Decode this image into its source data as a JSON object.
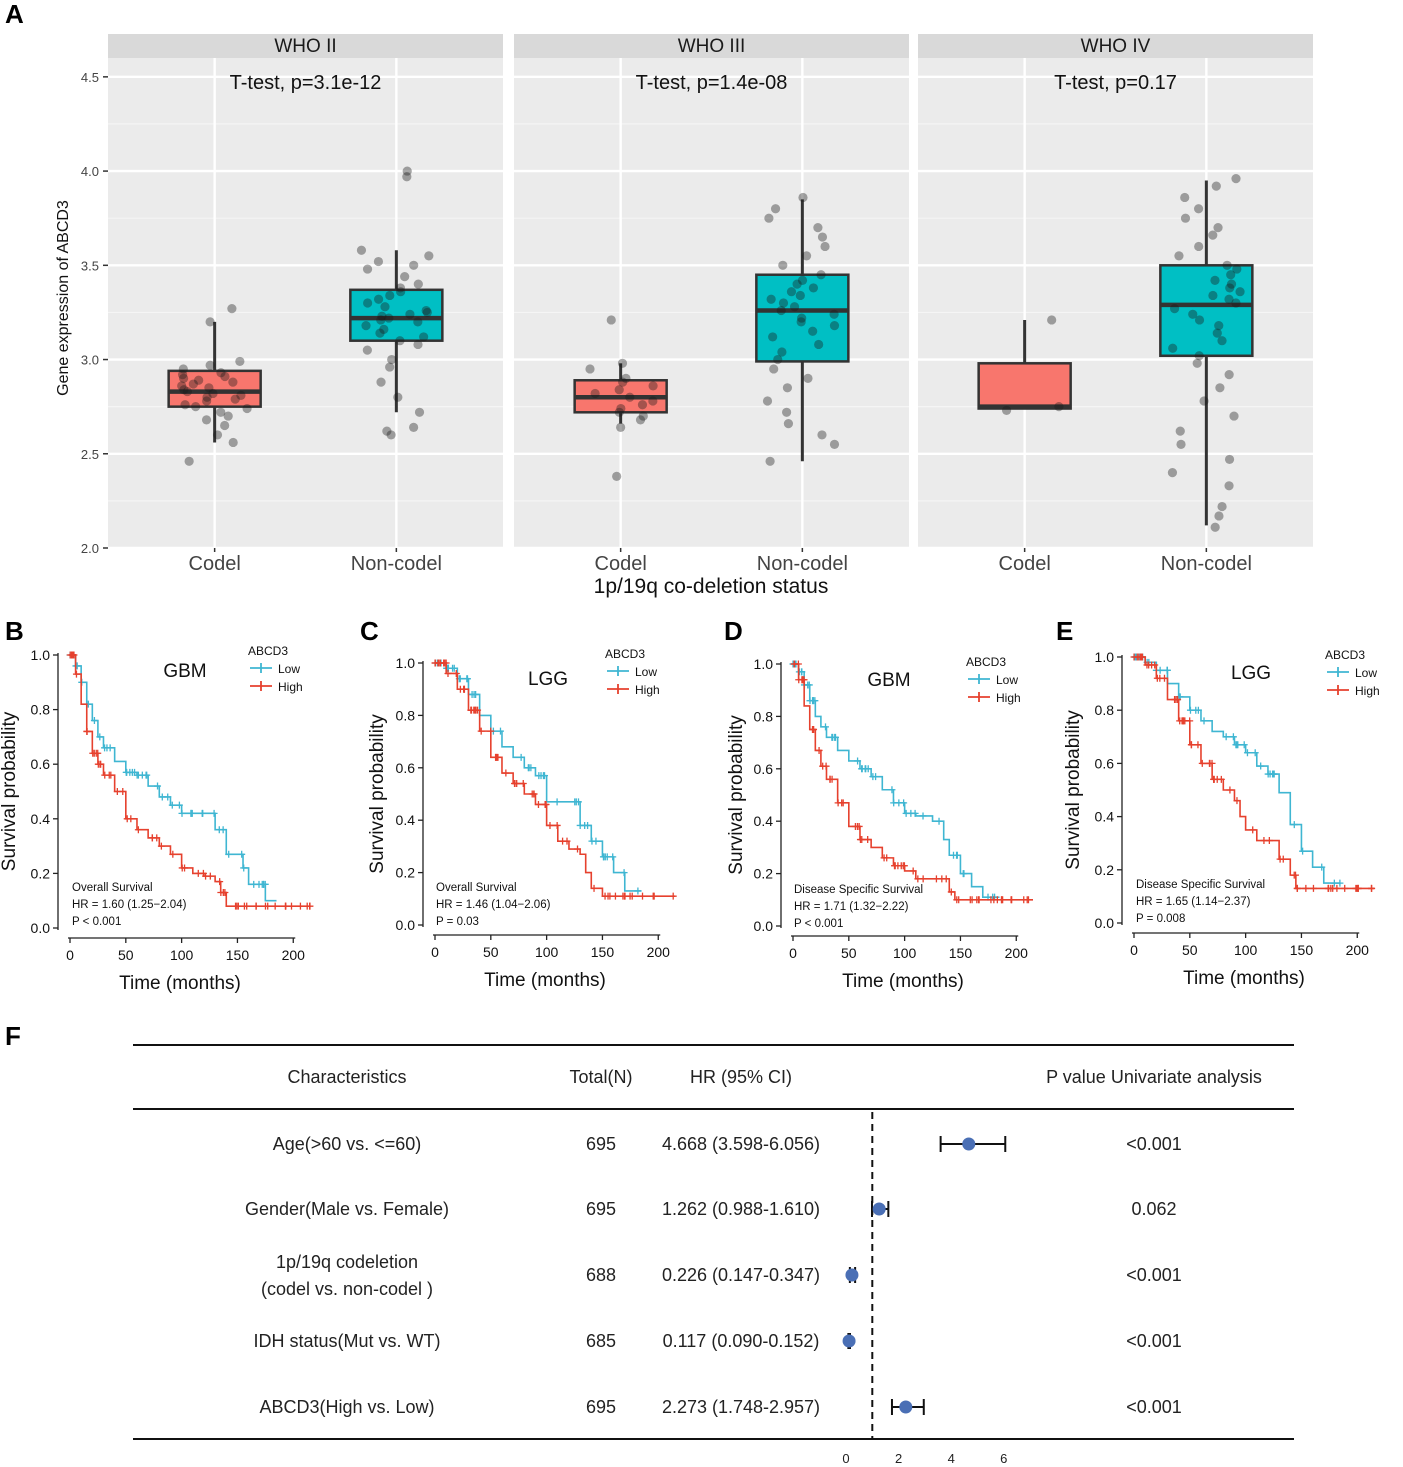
{
  "panel_labels": {
    "a": "A",
    "b": "B",
    "c": "C",
    "d": "D",
    "e": "E",
    "f": "F"
  },
  "chart_data": [
    {
      "type": "box",
      "panel": "A",
      "ylabel": "Gene expression of ABCD3",
      "xlabel": "1p/19q co-deletion status",
      "ylim": [
        2.0,
        4.6
      ],
      "yticks": [
        "2.0",
        "2.5",
        "3.0",
        "3.5",
        "4.0",
        "4.5"
      ],
      "categories": [
        "Codel",
        "Non-codel"
      ],
      "colors": {
        "Codel": "#F8766D",
        "Non-codel": "#00BFC4"
      },
      "facets": [
        {
          "name": "WHO II",
          "annotation": "T-test, p=3.1e-12",
          "boxes": [
            {
              "category": "Codel",
              "min": 2.56,
              "q1": 2.75,
              "median": 2.83,
              "q3": 2.94,
              "max": 3.2,
              "points": [
                2.46,
                2.56,
                2.6,
                2.65,
                2.68,
                2.7,
                2.72,
                2.74,
                2.75,
                2.76,
                2.78,
                2.79,
                2.8,
                2.81,
                2.82,
                2.83,
                2.84,
                2.85,
                2.86,
                2.87,
                2.88,
                2.89,
                2.9,
                2.91,
                2.92,
                2.93,
                2.95,
                2.97,
                2.99,
                3.2,
                3.27
              ]
            },
            {
              "category": "Non-codel",
              "min": 2.72,
              "q1": 3.1,
              "median": 3.22,
              "q3": 3.37,
              "max": 3.58,
              "points": [
                2.6,
                2.62,
                2.64,
                2.72,
                2.8,
                2.88,
                2.96,
                3.0,
                3.05,
                3.08,
                3.1,
                3.12,
                3.14,
                3.16,
                3.18,
                3.2,
                3.21,
                3.22,
                3.23,
                3.24,
                3.25,
                3.26,
                3.28,
                3.3,
                3.32,
                3.34,
                3.36,
                3.38,
                3.4,
                3.44,
                3.48,
                3.5,
                3.52,
                3.55,
                3.58,
                3.97,
                4.0
              ]
            }
          ]
        },
        {
          "name": "WHO III",
          "annotation": "T-test, p=1.4e-08",
          "boxes": [
            {
              "category": "Codel",
              "min": 2.66,
              "q1": 2.72,
              "median": 2.8,
              "q3": 2.89,
              "max": 2.98,
              "points": [
                2.38,
                2.64,
                2.68,
                2.7,
                2.72,
                2.74,
                2.76,
                2.78,
                2.8,
                2.82,
                2.84,
                2.86,
                2.88,
                2.9,
                2.95,
                2.98,
                3.21
              ]
            },
            {
              "category": "Non-codel",
              "min": 2.46,
              "q1": 2.99,
              "median": 3.26,
              "q3": 3.45,
              "max": 3.85,
              "points": [
                2.46,
                2.55,
                2.6,
                2.66,
                2.72,
                2.78,
                2.85,
                2.9,
                2.95,
                3.0,
                3.04,
                3.08,
                3.12,
                3.15,
                3.18,
                3.2,
                3.22,
                3.24,
                3.26,
                3.28,
                3.3,
                3.32,
                3.34,
                3.36,
                3.38,
                3.4,
                3.42,
                3.45,
                3.5,
                3.55,
                3.6,
                3.65,
                3.7,
                3.75,
                3.8,
                3.86
              ]
            }
          ]
        },
        {
          "name": "WHO IV",
          "annotation": "T-test, p=0.17",
          "boxes": [
            {
              "category": "Codel",
              "min": 2.74,
              "q1": 2.74,
              "median": 2.75,
              "q3": 2.98,
              "max": 3.21,
              "points": [
                2.73,
                2.75,
                3.21
              ]
            },
            {
              "category": "Non-codel",
              "min": 2.12,
              "q1": 3.02,
              "median": 3.29,
              "q3": 3.5,
              "max": 3.95,
              "points": [
                2.11,
                2.17,
                2.22,
                2.33,
                2.4,
                2.47,
                2.55,
                2.62,
                2.7,
                2.78,
                2.85,
                2.92,
                2.98,
                3.02,
                3.06,
                3.1,
                3.14,
                3.18,
                3.21,
                3.24,
                3.27,
                3.3,
                3.32,
                3.34,
                3.36,
                3.38,
                3.4,
                3.42,
                3.45,
                3.48,
                3.5,
                3.55,
                3.6,
                3.66,
                3.7,
                3.75,
                3.8,
                3.86,
                3.92,
                3.96
              ]
            }
          ]
        }
      ]
    },
    {
      "type": "line",
      "panel": "B",
      "title": "GBM",
      "xlabel": "Time (months)",
      "ylabel": "Survival probability",
      "xlim": [
        0,
        215
      ],
      "ylim": [
        0,
        1
      ],
      "xticks": [
        "0",
        "50",
        "100",
        "150",
        "200"
      ],
      "yticks": [
        "0.0",
        "0.2",
        "0.4",
        "0.6",
        "0.8",
        "1.0"
      ],
      "legend": {
        "title": "ABCD3",
        "items": [
          "Low",
          "High"
        ]
      },
      "stats": [
        "Overall Survival",
        "HR = 1.60 (1.25−2.04)",
        "P < 0.001"
      ],
      "series": [
        {
          "name": "Low",
          "color": "#3FB6D2",
          "x": [
            0,
            5,
            10,
            15,
            20,
            25,
            30,
            40,
            50,
            60,
            70,
            80,
            90,
            100,
            115,
            130,
            135,
            140,
            155,
            160,
            175,
            185
          ],
          "y": [
            1.0,
            0.96,
            0.9,
            0.82,
            0.76,
            0.7,
            0.66,
            0.61,
            0.57,
            0.56,
            0.52,
            0.48,
            0.45,
            0.42,
            0.42,
            0.36,
            0.36,
            0.27,
            0.22,
            0.16,
            0.1,
            0.1
          ]
        },
        {
          "name": "High",
          "color": "#E6412E",
          "x": [
            0,
            5,
            10,
            15,
            20,
            25,
            30,
            40,
            50,
            60,
            70,
            80,
            90,
            100,
            110,
            120,
            130,
            135,
            140,
            160,
            180,
            215
          ],
          "y": [
            1.0,
            0.93,
            0.82,
            0.72,
            0.64,
            0.6,
            0.56,
            0.5,
            0.4,
            0.36,
            0.33,
            0.3,
            0.27,
            0.22,
            0.2,
            0.19,
            0.17,
            0.13,
            0.08,
            0.08,
            0.08,
            0.08
          ]
        }
      ]
    },
    {
      "type": "line",
      "panel": "C",
      "title": "LGG",
      "xlabel": "Time (months)",
      "ylabel": "Survival probability",
      "xlim": [
        0,
        215
      ],
      "ylim": [
        0,
        1
      ],
      "xticks": [
        "0",
        "50",
        "100",
        "150",
        "200"
      ],
      "yticks": [
        "0.0",
        "0.2",
        "0.4",
        "0.6",
        "0.8",
        "1.0"
      ],
      "legend": {
        "title": "ABCD3",
        "items": [
          "Low",
          "High"
        ]
      },
      "stats": [
        "Overall Survival",
        "HR = 1.46 (1.04−2.06)",
        "P = 0.03"
      ],
      "series": [
        {
          "name": "Low",
          "color": "#3FB6D2",
          "x": [
            0,
            10,
            20,
            30,
            40,
            50,
            60,
            70,
            80,
            90,
            95,
            100,
            120,
            130,
            140,
            150,
            160,
            170,
            185
          ],
          "y": [
            1.0,
            0.98,
            0.94,
            0.88,
            0.8,
            0.74,
            0.68,
            0.64,
            0.6,
            0.57,
            0.57,
            0.47,
            0.47,
            0.38,
            0.32,
            0.26,
            0.2,
            0.13,
            0.13
          ]
        },
        {
          "name": "High",
          "color": "#E6412E",
          "x": [
            0,
            10,
            20,
            30,
            40,
            50,
            60,
            70,
            80,
            90,
            100,
            110,
            120,
            130,
            135,
            140,
            150,
            175,
            215
          ],
          "y": [
            1.0,
            0.96,
            0.9,
            0.82,
            0.74,
            0.64,
            0.58,
            0.54,
            0.5,
            0.46,
            0.38,
            0.32,
            0.29,
            0.27,
            0.2,
            0.14,
            0.11,
            0.11,
            0.11
          ]
        }
      ]
    },
    {
      "type": "line",
      "panel": "D",
      "title": "GBM",
      "xlabel": "Time (months)",
      "ylabel": "Survival probability",
      "xlim": [
        0,
        215
      ],
      "ylim": [
        0,
        1
      ],
      "xticks": [
        "0",
        "50",
        "100",
        "150",
        "200"
      ],
      "yticks": [
        "0.0",
        "0.2",
        "0.4",
        "0.6",
        "0.8",
        "1.0"
      ],
      "legend": {
        "title": "ABCD3",
        "items": [
          "Low",
          "High"
        ]
      },
      "stats": [
        "Disease Specific Survival",
        "HR = 1.71 (1.32−2.22)",
        "P < 0.001"
      ],
      "series": [
        {
          "name": "Low",
          "color": "#3FB6D2",
          "x": [
            0,
            5,
            10,
            15,
            20,
            25,
            30,
            40,
            50,
            60,
            70,
            80,
            90,
            100,
            110,
            125,
            135,
            140,
            150,
            160,
            170,
            185
          ],
          "y": [
            1.0,
            0.97,
            0.92,
            0.86,
            0.8,
            0.76,
            0.72,
            0.67,
            0.63,
            0.6,
            0.57,
            0.52,
            0.47,
            0.43,
            0.42,
            0.4,
            0.33,
            0.27,
            0.2,
            0.15,
            0.11,
            0.11
          ]
        },
        {
          "name": "High",
          "color": "#E6412E",
          "x": [
            0,
            5,
            10,
            15,
            20,
            25,
            30,
            40,
            50,
            60,
            70,
            80,
            90,
            100,
            110,
            130,
            140,
            145,
            160,
            180,
            215
          ],
          "y": [
            1.0,
            0.94,
            0.84,
            0.75,
            0.67,
            0.61,
            0.56,
            0.47,
            0.38,
            0.33,
            0.3,
            0.26,
            0.23,
            0.21,
            0.18,
            0.18,
            0.13,
            0.1,
            0.1,
            0.1,
            0.1
          ]
        }
      ]
    },
    {
      "type": "line",
      "panel": "E",
      "title": "LGG",
      "xlabel": "Time (months)",
      "ylabel": "Survival probability",
      "xlim": [
        0,
        215
      ],
      "ylim": [
        0,
        1
      ],
      "xticks": [
        "0",
        "50",
        "100",
        "150",
        "200"
      ],
      "yticks": [
        "0.0",
        "0.2",
        "0.4",
        "0.6",
        "0.8",
        "1.0"
      ],
      "legend": {
        "title": "ABCD3",
        "items": [
          "Low",
          "High"
        ]
      },
      "stats": [
        "Disease Specific Survival",
        "HR = 1.65 (1.14−2.37)",
        "P = 0.008"
      ],
      "series": [
        {
          "name": "Low",
          "color": "#3FB6D2",
          "x": [
            0,
            10,
            20,
            30,
            40,
            50,
            60,
            70,
            80,
            90,
            100,
            110,
            120,
            130,
            135,
            140,
            150,
            160,
            170,
            185
          ],
          "y": [
            1.0,
            0.98,
            0.95,
            0.9,
            0.85,
            0.8,
            0.76,
            0.72,
            0.7,
            0.67,
            0.64,
            0.59,
            0.56,
            0.49,
            0.49,
            0.37,
            0.27,
            0.21,
            0.15,
            0.15
          ]
        },
        {
          "name": "High",
          "color": "#E6412E",
          "x": [
            0,
            10,
            20,
            30,
            40,
            50,
            60,
            70,
            80,
            90,
            95,
            100,
            110,
            130,
            140,
            145,
            160,
            180,
            215
          ],
          "y": [
            1.0,
            0.97,
            0.92,
            0.84,
            0.76,
            0.67,
            0.6,
            0.54,
            0.5,
            0.46,
            0.4,
            0.35,
            0.31,
            0.24,
            0.18,
            0.13,
            0.13,
            0.13,
            0.13
          ]
        }
      ]
    },
    {
      "type": "table",
      "panel": "F",
      "headers": {
        "characteristics": "Characteristics",
        "total": "Total(N)",
        "hr": "HR (95% CI)",
        "p": "P value Univariate analysis"
      },
      "reference_line": 1,
      "xticks": [
        "0",
        "2",
        "4",
        "6"
      ],
      "xlim": [
        0,
        6
      ],
      "rows": [
        {
          "label": [
            "Age(>60 vs. <=60)"
          ],
          "n": "695",
          "hr_text": "4.668 (3.598-6.056)",
          "hr": 4.668,
          "lo": 3.598,
          "hi": 6.056,
          "p": "<0.001"
        },
        {
          "label": [
            "Gender(Male vs. Female)"
          ],
          "n": "695",
          "hr_text": "1.262 (0.988-1.610)",
          "hr": 1.262,
          "lo": 0.988,
          "hi": 1.61,
          "p": "0.062"
        },
        {
          "label": [
            "1p/19q codeletion",
            "(codel vs. non-codel )"
          ],
          "n": "688",
          "hr_text": "0.226 (0.147-0.347)",
          "hr": 0.226,
          "lo": 0.147,
          "hi": 0.347,
          "p": "<0.001"
        },
        {
          "label": [
            "IDH status(Mut vs. WT)"
          ],
          "n": "685",
          "hr_text": "0.117 (0.090-0.152)",
          "hr": 0.117,
          "lo": 0.09,
          "hi": 0.152,
          "p": "<0.001"
        },
        {
          "label": [
            "ABCD3(High vs. Low)"
          ],
          "n": "695",
          "hr_text": "2.273 (1.748-2.957)",
          "hr": 2.273,
          "lo": 1.748,
          "hi": 2.957,
          "p": "<0.001"
        }
      ]
    }
  ]
}
